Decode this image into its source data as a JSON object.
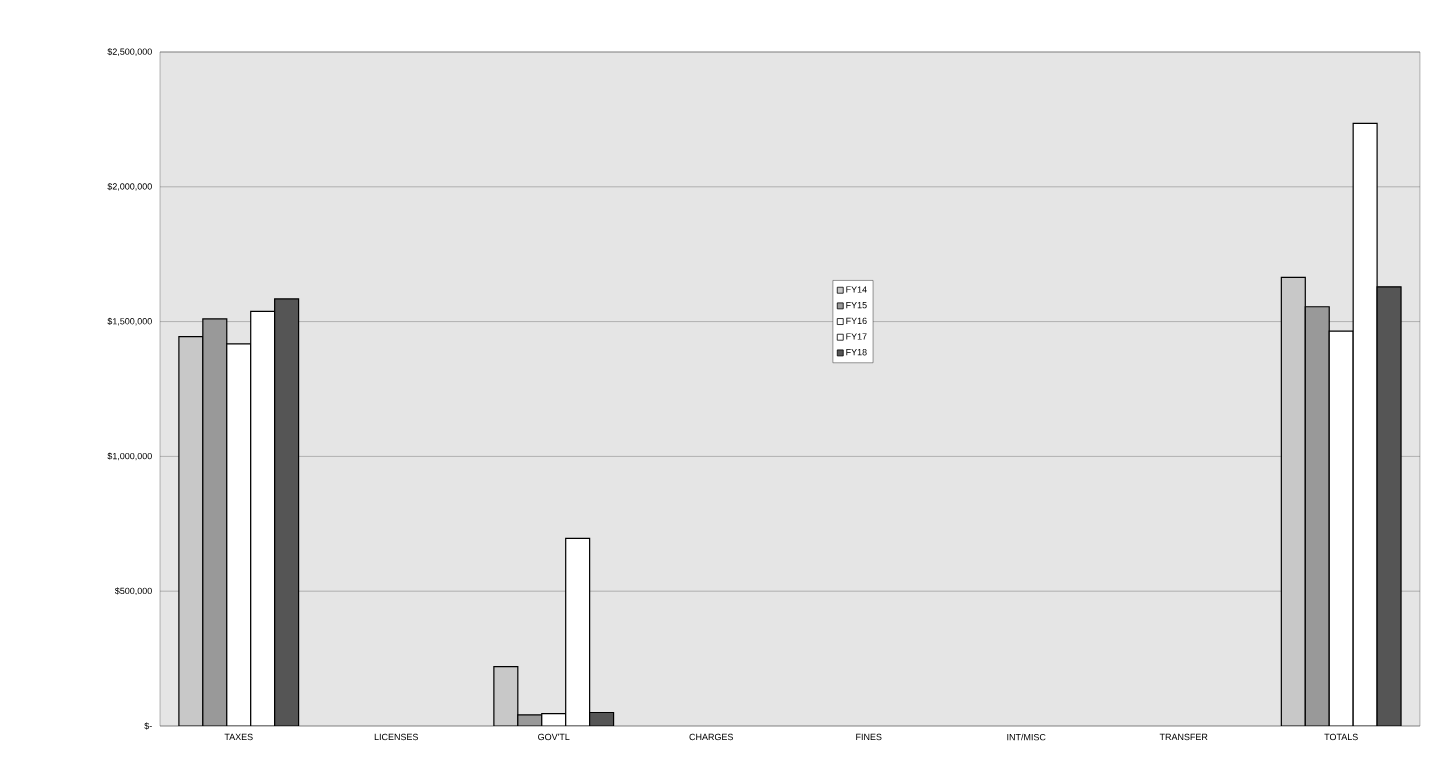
{
  "chart_data": {
    "type": "bar",
    "categories": [
      "TAXES",
      "LICENSES",
      "GOV'TL",
      "CHARGES",
      "FINES",
      "INT/MISC",
      "TRANSFER",
      "TOTALS"
    ],
    "series": [
      {
        "name": "FY14",
        "color": "#c8c8c8",
        "values": [
          1444000,
          null,
          220000,
          null,
          null,
          null,
          null,
          1664000
        ]
      },
      {
        "name": "FY15",
        "color": "#999999",
        "values": [
          1510000,
          null,
          41000,
          null,
          null,
          null,
          null,
          1555000
        ]
      },
      {
        "name": "FY16",
        "color": "#ffffff",
        "values": [
          1417000,
          null,
          46000,
          null,
          null,
          null,
          null,
          1465000
        ]
      },
      {
        "name": "FY17",
        "color": "#ffffff",
        "values": [
          1538000,
          null,
          696000,
          null,
          null,
          null,
          null,
          2235000
        ]
      },
      {
        "name": "FY18",
        "color": "#555555",
        "values": [
          1584000,
          null,
          50000,
          null,
          null,
          null,
          null,
          1629000
        ]
      }
    ],
    "ylim": [
      0,
      2500000
    ],
    "yticks": [
      {
        "value": 0,
        "label": "$-"
      },
      {
        "value": 500000,
        "label": "$500,000"
      },
      {
        "value": 1000000,
        "label": "$1,000,000"
      },
      {
        "value": 1500000,
        "label": "$1,500,000"
      },
      {
        "value": 2000000,
        "label": "$2,000,000"
      },
      {
        "value": 2500000,
        "label": "$2,500,000"
      }
    ],
    "grid": "y",
    "legend": "center"
  }
}
